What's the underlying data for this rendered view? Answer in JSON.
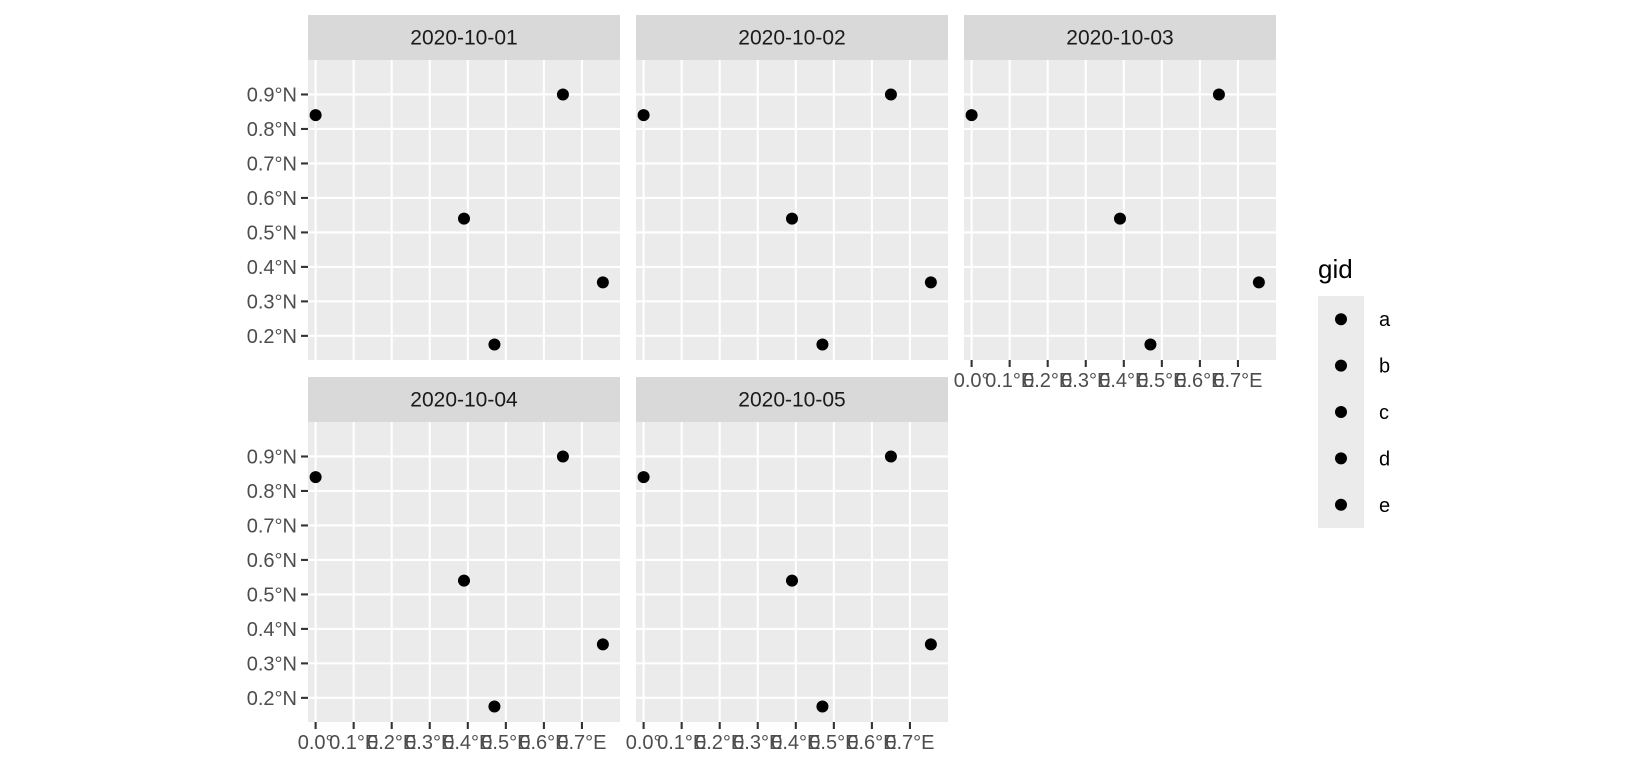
{
  "chart_data": {
    "type": "scatter",
    "facet_by": "date",
    "panels": [
      "2020-10-01",
      "2020-10-02",
      "2020-10-03",
      "2020-10-04",
      "2020-10-05"
    ],
    "x_unit": "°E (longitude)",
    "y_unit": "°N (latitude)",
    "xlim": [
      -0.02,
      0.8
    ],
    "ylim": [
      0.13,
      1.0
    ],
    "x_ticks": [
      0.0,
      0.1,
      0.2,
      0.3,
      0.4,
      0.5,
      0.6,
      0.7
    ],
    "x_tick_labels": [
      "0.0°",
      "0.1°E",
      "0.2°E",
      "0.3°E",
      "0.4°E",
      "0.5°E",
      "0.6°E",
      "0.7°E"
    ],
    "y_ticks": [
      0.2,
      0.3,
      0.4,
      0.5,
      0.6,
      0.7,
      0.8,
      0.9
    ],
    "y_tick_labels": [
      "0.2°N",
      "0.3°N",
      "0.4°N",
      "0.5°N",
      "0.6°N",
      "0.7°N",
      "0.8°N",
      "0.9°N"
    ],
    "points": [
      {
        "gid": "a",
        "x": 0.0,
        "y": 0.84
      },
      {
        "gid": "b",
        "x": 0.39,
        "y": 0.54
      },
      {
        "gid": "c",
        "x": 0.47,
        "y": 0.175
      },
      {
        "gid": "d",
        "x": 0.65,
        "y": 0.9
      },
      {
        "gid": "e",
        "x": 0.755,
        "y": 0.355
      }
    ],
    "grid": true,
    "marker_color": "#000000",
    "panel_background": "#ebebeb",
    "strip_background": "#d9d9d9",
    "legend": {
      "title": "gid",
      "position": "right",
      "entries": [
        "a",
        "b",
        "c",
        "d",
        "e"
      ]
    }
  }
}
